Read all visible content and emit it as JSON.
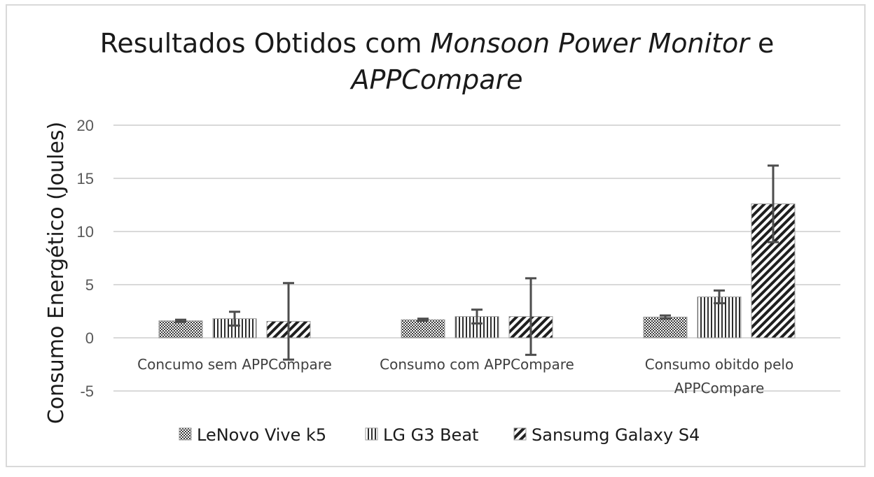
{
  "chart_data": {
    "type": "bar",
    "title_parts": [
      {
        "text": "Resultados Obtidos com ",
        "italic": false
      },
      {
        "text": "Monsoon Power Monitor",
        "italic": true
      },
      {
        "text": " e",
        "italic": false
      },
      {
        "text": "APPCompare",
        "italic": true,
        "newline": true
      }
    ],
    "ylabel": "Consumo Energético (Joules)",
    "xlabel": "",
    "ylim": [
      -5,
      20
    ],
    "yticks": [
      -5,
      0,
      5,
      10,
      15,
      20
    ],
    "grid": true,
    "legend_position": "bottom",
    "categories": [
      [
        "Concumo sem APPCompare"
      ],
      [
        "Consumo com APPCompare"
      ],
      [
        "Consumo obitdo pelo",
        "APPCompare"
      ]
    ],
    "series": [
      {
        "name": "LeNovo Vive k5",
        "pattern": "dots",
        "values": [
          1.6,
          1.7,
          1.95
        ],
        "errors": [
          0.1,
          0.1,
          0.15
        ]
      },
      {
        "name": "LG G3 Beat",
        "pattern": "vstripes",
        "values": [
          1.8,
          2.0,
          3.85
        ],
        "errors": [
          0.65,
          0.65,
          0.6
        ]
      },
      {
        "name": "Sansumg Galaxy S4",
        "pattern": "diag",
        "values": [
          1.55,
          2.0,
          12.6
        ],
        "errors": [
          3.6,
          3.6,
          3.6
        ]
      }
    ]
  }
}
